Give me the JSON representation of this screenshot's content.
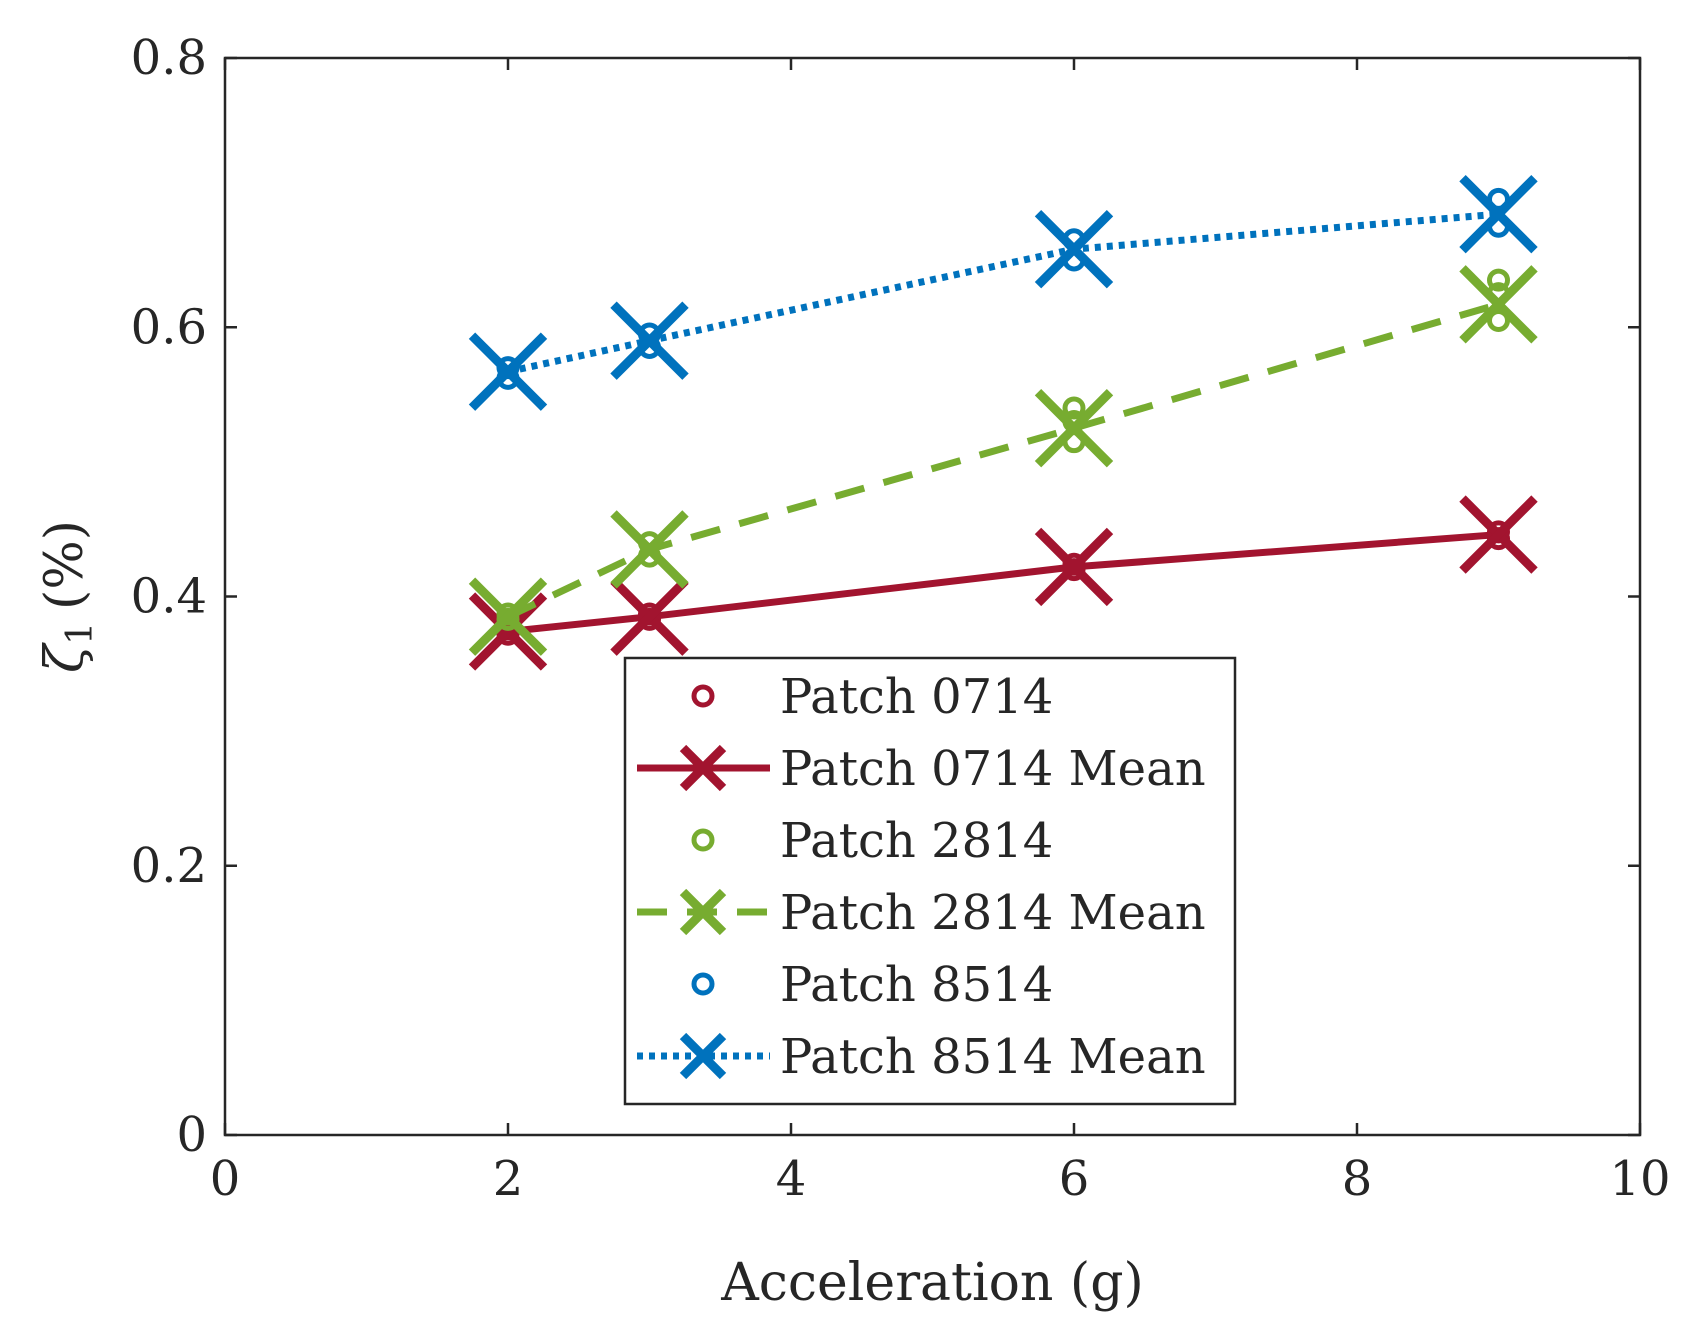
{
  "chart_data": {
    "type": "line",
    "xlabel": "Acceleration (g)",
    "ylabel": {
      "symbol": "ζ",
      "subscript": "1",
      "unit": "(%)"
    },
    "xlim": [
      0,
      10
    ],
    "ylim": [
      0,
      0.8
    ],
    "xticks": [
      0,
      2,
      4,
      6,
      8,
      10
    ],
    "xtick_labels": [
      "0",
      "2",
      "4",
      "6",
      "8",
      "10"
    ],
    "yticks": [
      0,
      0.2,
      0.4,
      0.6,
      0.8
    ],
    "ytick_labels": [
      "0",
      "0.2",
      "0.4",
      "0.6",
      "0.8"
    ],
    "grid": false,
    "legend_position": "lower-center",
    "series": [
      {
        "name": "Patch 0714",
        "kind": "markers",
        "marker": "circle",
        "color": "#A2142F",
        "points": [
          [
            2,
            0.372
          ],
          [
            2,
            0.376
          ],
          [
            3,
            0.383
          ],
          [
            3,
            0.387
          ],
          [
            6,
            0.42
          ],
          [
            6,
            0.424
          ],
          [
            9,
            0.443
          ],
          [
            9,
            0.448
          ]
        ]
      },
      {
        "name": "Patch 0714 Mean",
        "kind": "line",
        "style": "solid",
        "marker": "x",
        "color": "#A2142F",
        "x": [
          2,
          3,
          6,
          9
        ],
        "y": [
          0.374,
          0.385,
          0.422,
          0.446
        ]
      },
      {
        "name": "Patch 2814",
        "kind": "markers",
        "marker": "circle",
        "color": "#77AC30",
        "points": [
          [
            2,
            0.383
          ],
          [
            2,
            0.387
          ],
          [
            3,
            0.43
          ],
          [
            3,
            0.44
          ],
          [
            6,
            0.515
          ],
          [
            6,
            0.53
          ],
          [
            6,
            0.54
          ],
          [
            9,
            0.605
          ],
          [
            9,
            0.625
          ],
          [
            9,
            0.635
          ]
        ]
      },
      {
        "name": "Patch 2814 Mean",
        "kind": "line",
        "style": "dashed",
        "marker": "x",
        "color": "#77AC30",
        "x": [
          2,
          3,
          6,
          9
        ],
        "y": [
          0.385,
          0.435,
          0.525,
          0.617
        ]
      },
      {
        "name": "Patch 8514",
        "kind": "markers",
        "marker": "circle",
        "color": "#0072BD",
        "points": [
          [
            2,
            0.562
          ],
          [
            2,
            0.57
          ],
          [
            3,
            0.585
          ],
          [
            3,
            0.595
          ],
          [
            6,
            0.65
          ],
          [
            6,
            0.665
          ],
          [
            9,
            0.675
          ],
          [
            9,
            0.695
          ]
        ]
      },
      {
        "name": "Patch 8514 Mean",
        "kind": "line",
        "style": "dotted",
        "marker": "x",
        "color": "#0072BD",
        "x": [
          2,
          3,
          6,
          9
        ],
        "y": [
          0.567,
          0.59,
          0.658,
          0.684
        ]
      }
    ]
  }
}
